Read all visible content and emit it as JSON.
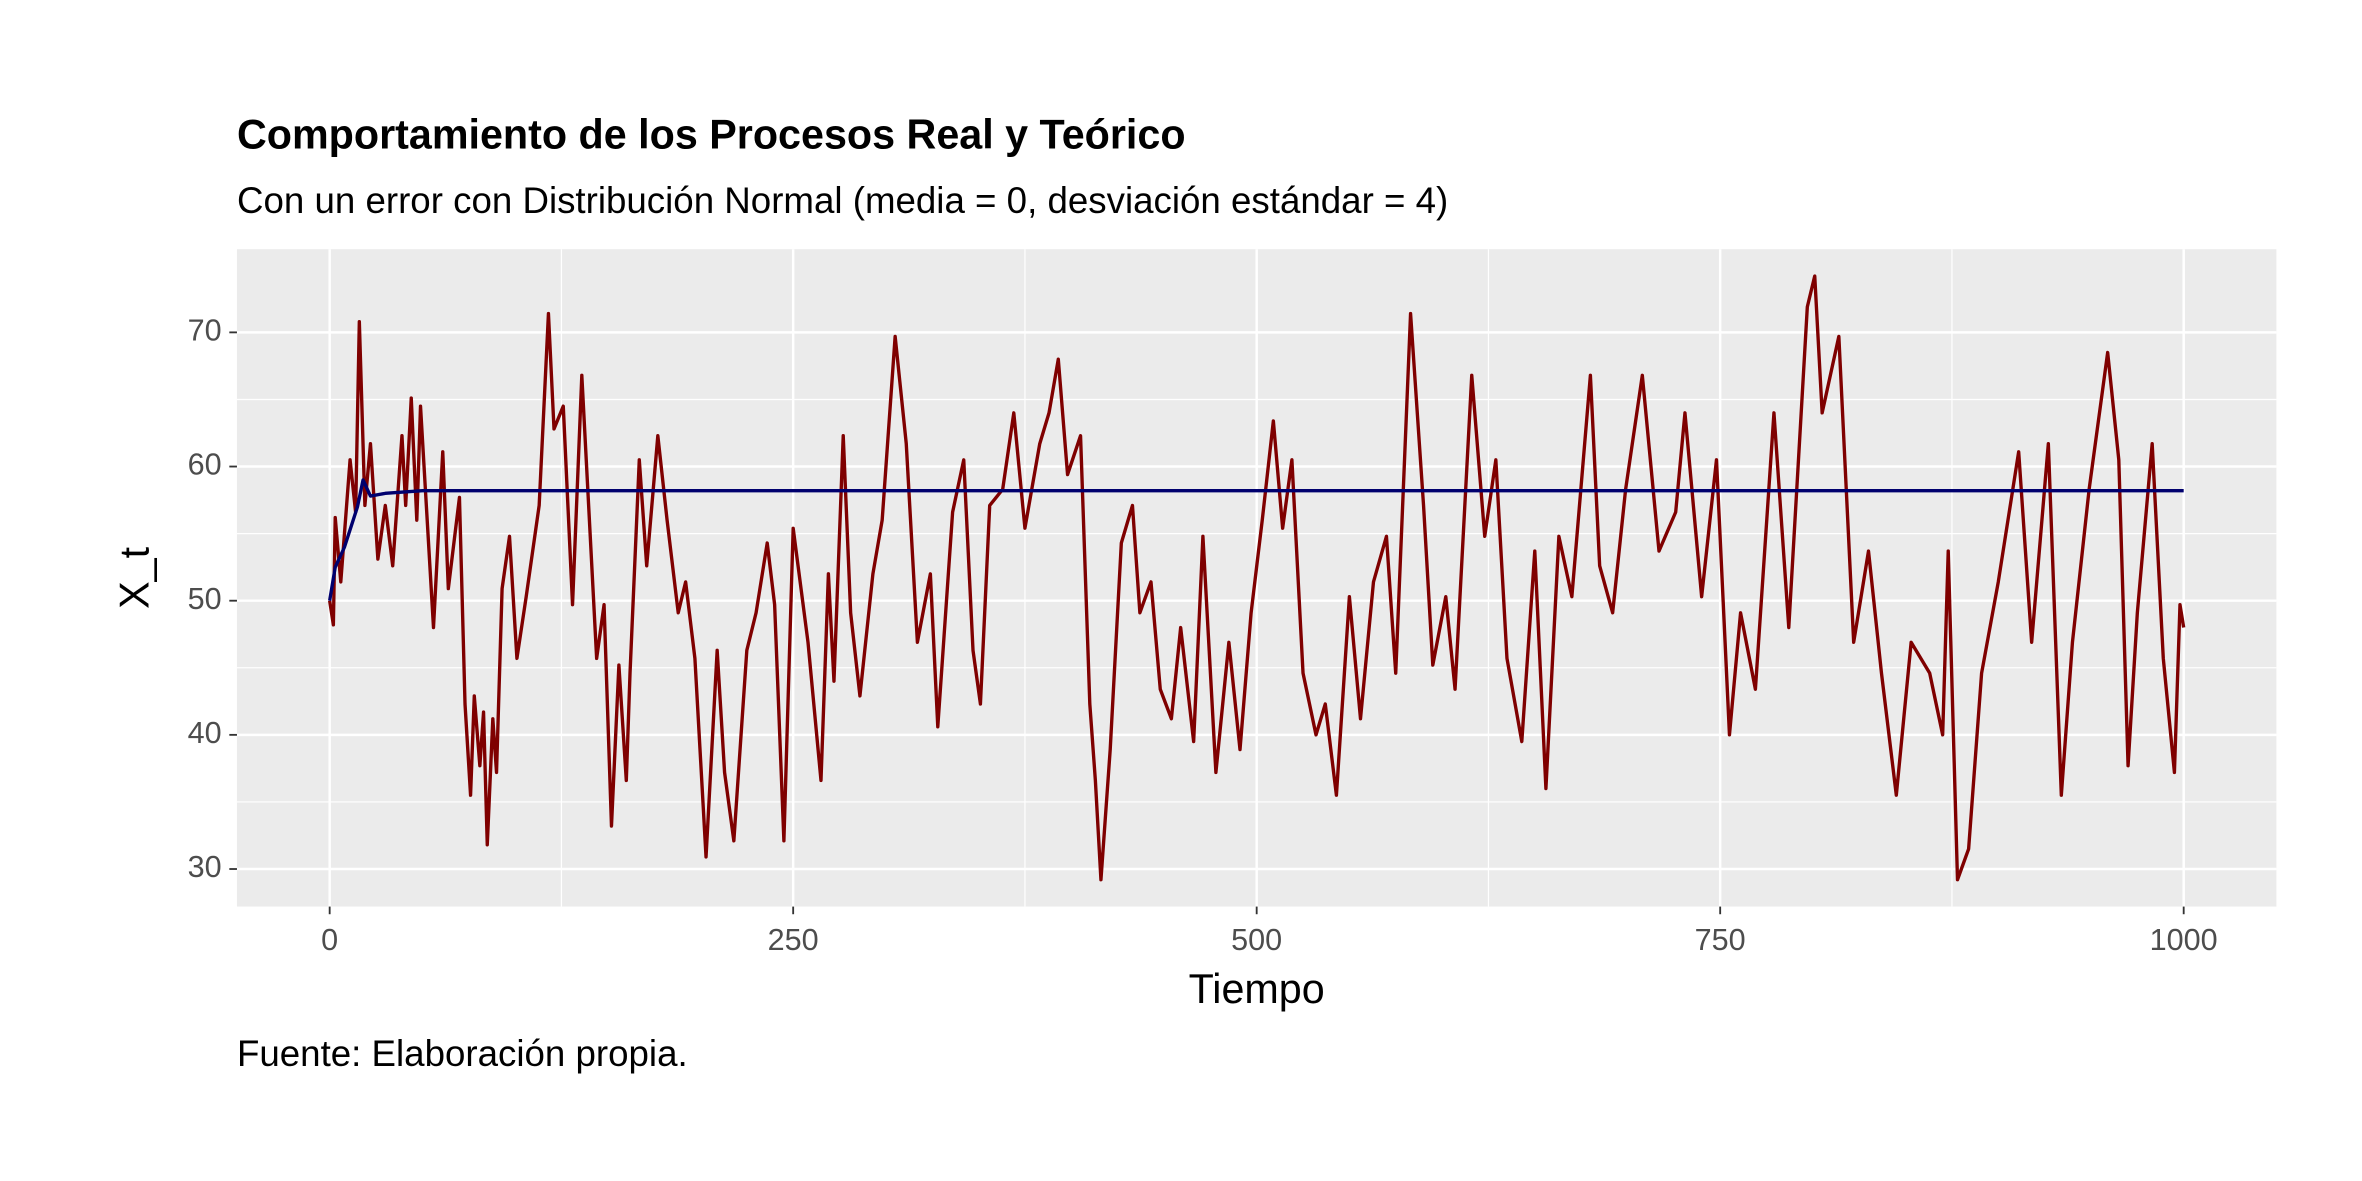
{
  "chart_data": {
    "type": "line",
    "title": "Comportamiento de los Procesos Real y Teórico",
    "subtitle": "Con un error con Distribución Normal (media = 0, desviación estándar = 4)",
    "caption": "Fuente: Elaboración propia.",
    "x_label": "Tiempo",
    "y_label": "X_t",
    "xlim": [
      -50,
      1050
    ],
    "ylim": [
      27.2,
      76.2
    ],
    "xticks": [
      0,
      250,
      500,
      750,
      1000
    ],
    "yticks": [
      30,
      40,
      50,
      60,
      70
    ],
    "grid": true,
    "series": [
      {
        "color": "#7f0000",
        "x": [
          0,
          2,
          3,
          6,
          11,
          14,
          16,
          19,
          22,
          26,
          30,
          34,
          39,
          41,
          44,
          47,
          49,
          56,
          61,
          64,
          70,
          73,
          76,
          78,
          81,
          83,
          85,
          88,
          90,
          93,
          97,
          101,
          106,
          113,
          118,
          121,
          126,
          131,
          136,
          144,
          148,
          152,
          156,
          160,
          162,
          167,
          171,
          177,
          182,
          188,
          192,
          197,
          203,
          209,
          213,
          218,
          225,
          230,
          236,
          240,
          245,
          250,
          258,
          265,
          269,
          272,
          277,
          281,
          286,
          293,
          298,
          305,
          311,
          317,
          324,
          328,
          336,
          342,
          347,
          351,
          356,
          363,
          369,
          375,
          383,
          388,
          393,
          398,
          405,
          410,
          413,
          416,
          421,
          427,
          433,
          437,
          443,
          448,
          454,
          459,
          466,
          471,
          478,
          485,
          491,
          497,
          503,
          509,
          514,
          519,
          525,
          532,
          537,
          543,
          550,
          556,
          563,
          570,
          575,
          583,
          590,
          595,
          602,
          607,
          616,
          623,
          629,
          635,
          643,
          650,
          656,
          663,
          670,
          680,
          685,
          692,
          699,
          708,
          717,
          726,
          731,
          740,
          748,
          755,
          761,
          769,
          779,
          787,
          797,
          801,
          805,
          814,
          822,
          830,
          837,
          845,
          853,
          863,
          870,
          873,
          878,
          884,
          891,
          900,
          911,
          918,
          927,
          934,
          940,
          949,
          959,
          965,
          970,
          975,
          983,
          989,
          995,
          998,
          1000
        ],
        "values": [
          50,
          48.2,
          56.2,
          51.4,
          60.5,
          56.6,
          70.8,
          57.1,
          61.7,
          53.1,
          57.1,
          52.6,
          62.3,
          57.1,
          65.1,
          56,
          64.5,
          48,
          61.1,
          50.9,
          57.7,
          42.3,
          35.5,
          42.9,
          37.7,
          41.7,
          31.8,
          41.2,
          37.2,
          50.9,
          54.8,
          45.7,
          50.3,
          57.1,
          71.4,
          62.8,
          64.5,
          49.7,
          66.8,
          45.7,
          49.7,
          33.2,
          45.2,
          36.6,
          44.6,
          60.5,
          52.6,
          62.3,
          56,
          49.1,
          51.4,
          45.7,
          30.9,
          46.3,
          37.2,
          32.1,
          46.3,
          49.1,
          54.3,
          49.7,
          32.1,
          55.4,
          46.9,
          36.6,
          52,
          44,
          62.3,
          49.1,
          42.9,
          52,
          56,
          69.7,
          61.7,
          46.9,
          52,
          40.6,
          56.6,
          60.5,
          46.3,
          42.3,
          57.1,
          58.3,
          64,
          55.4,
          61.7,
          64,
          68,
          59.4,
          62.3,
          42.3,
          36.6,
          29.2,
          38.9,
          54.3,
          57.1,
          49.1,
          51.4,
          43.4,
          41.2,
          48,
          39.5,
          54.8,
          37.2,
          46.9,
          38.9,
          49.1,
          56,
          63.4,
          55.4,
          60.5,
          44.6,
          40,
          42.3,
          35.5,
          50.3,
          41.2,
          51.4,
          54.8,
          44.6,
          71.4,
          57.1,
          45.2,
          50.3,
          43.4,
          66.8,
          54.8,
          60.5,
          45.7,
          39.5,
          53.7,
          36,
          54.8,
          50.3,
          66.8,
          52.6,
          49.1,
          58.3,
          66.8,
          53.7,
          56.6,
          64,
          50.3,
          60.5,
          40,
          49.1,
          43.4,
          64,
          48,
          71.9,
          74.2,
          64,
          69.7,
          46.9,
          53.7,
          44.6,
          35.5,
          46.9,
          44.6,
          40,
          53.7,
          29.2,
          31.5,
          44.6,
          51.4,
          61.1,
          46.9,
          61.7,
          35.5,
          46.9,
          58.3,
          68.5,
          60.5,
          37.7,
          49.1,
          61.7,
          45.7,
          37.2,
          49.7,
          48
        ]
      },
      {
        "color": "#00006e",
        "x": [
          0,
          3,
          8,
          15,
          18,
          22,
          30,
          50,
          1000
        ],
        "values": [
          50,
          52.5,
          54,
          57,
          59,
          57.8,
          58,
          58.2,
          58.2
        ]
      }
    ]
  }
}
